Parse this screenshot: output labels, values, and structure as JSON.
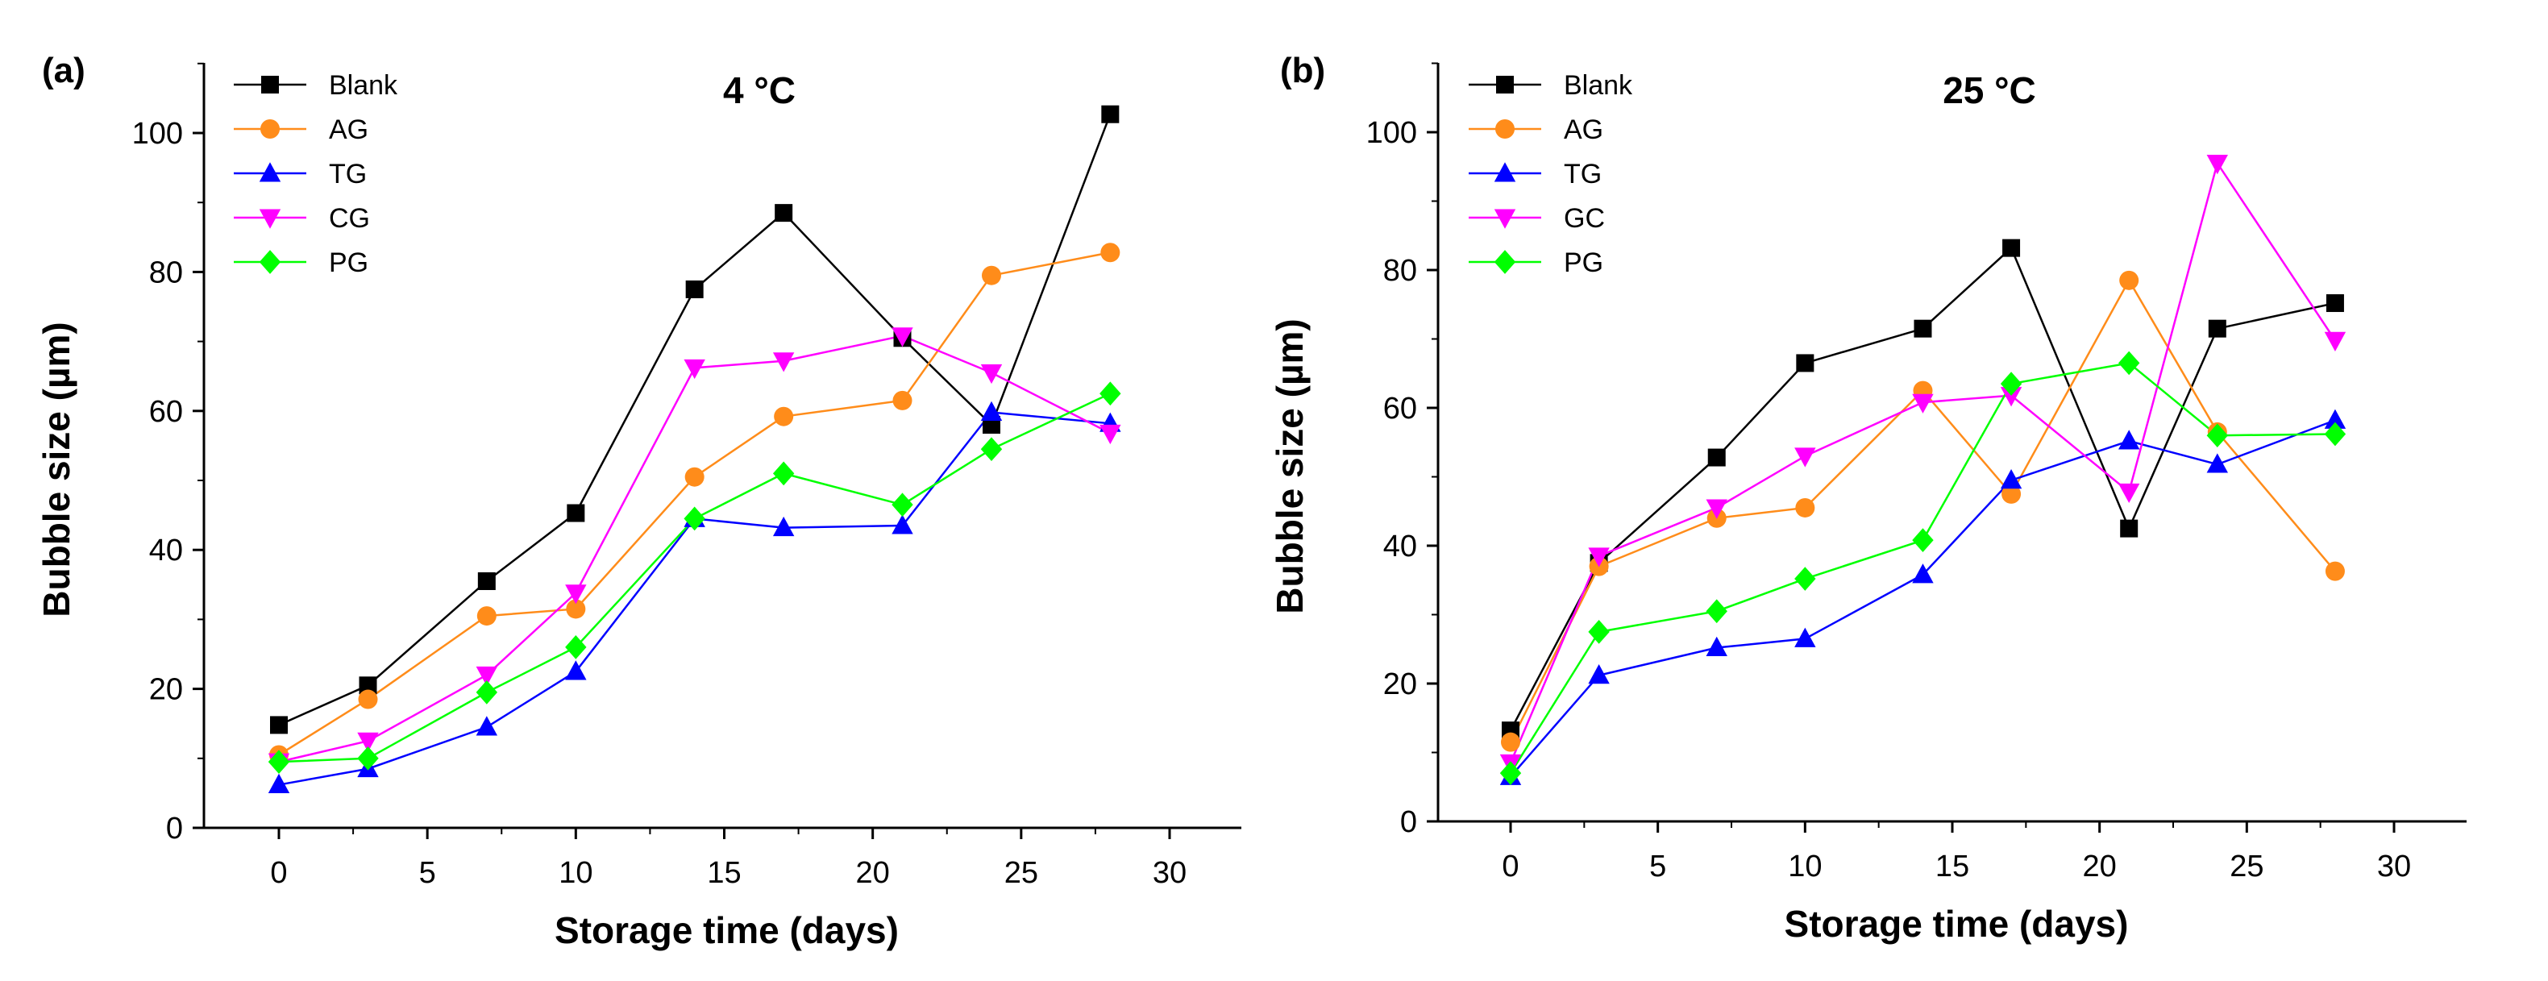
{
  "chart_data": [
    {
      "type": "line",
      "panel_label": "(a)",
      "title": "4 °C",
      "xlabel": "Storage time (days)",
      "ylabel": "Bubble size (µm)",
      "xlim": [
        -2.5,
        33
      ],
      "ylim": [
        0,
        110
      ],
      "xticks": [
        0,
        5,
        10,
        15,
        20,
        25,
        30
      ],
      "yticks": [
        0,
        20,
        40,
        60,
        80,
        100
      ],
      "x": [
        0,
        3,
        7,
        10,
        14,
        17,
        21,
        24,
        28
      ],
      "series": [
        {
          "name": "Blank",
          "color": "#000000",
          "marker": "square",
          "values": [
            14.8,
            20.5,
            35.5,
            45.3,
            77.5,
            88.5,
            70.5,
            58.0,
            102.7
          ]
        },
        {
          "name": "AG",
          "color": "#ff8c1a",
          "marker": "circle",
          "values": [
            10.5,
            18.5,
            30.5,
            31.5,
            50.5,
            59.2,
            61.5,
            79.5,
            82.8
          ]
        },
        {
          "name": "TG",
          "color": "#0000ff",
          "marker": "triangle-up",
          "values": [
            6.2,
            8.5,
            14.5,
            22.5,
            44.5,
            43.2,
            43.5,
            59.8,
            58.2
          ]
        },
        {
          "name": "CG",
          "color": "#ff00ff",
          "marker": "triangle-down",
          "values": [
            9.5,
            12.5,
            22.0,
            33.8,
            66.2,
            67.2,
            70.8,
            65.5,
            56.8
          ]
        },
        {
          "name": "PG",
          "color": "#00ff00",
          "marker": "diamond",
          "values": [
            9.5,
            10.0,
            19.5,
            26.0,
            44.5,
            51.0,
            46.5,
            54.5,
            62.5
          ]
        }
      ],
      "legend": "top-left"
    },
    {
      "type": "line",
      "panel_label": "(b)",
      "title": "25 °C",
      "xlabel": "Storage time (days)",
      "ylabel": "Bubble size (µm)",
      "xlim": [
        -2.5,
        33
      ],
      "ylim": [
        0,
        110
      ],
      "xticks": [
        0,
        5,
        10,
        15,
        20,
        25,
        30
      ],
      "yticks": [
        0,
        20,
        40,
        60,
        80,
        100
      ],
      "x": [
        0,
        3,
        7,
        10,
        14,
        17,
        21,
        24,
        28
      ],
      "series": [
        {
          "name": "Blank",
          "color": "#000000",
          "marker": "square",
          "values": [
            13.2,
            37.5,
            52.8,
            66.5,
            71.5,
            83.2,
            42.5,
            71.5,
            75.2
          ]
        },
        {
          "name": "AG",
          "color": "#ff8c1a",
          "marker": "circle",
          "values": [
            11.5,
            37.0,
            44.0,
            45.5,
            62.5,
            47.5,
            78.5,
            56.5,
            36.3
          ]
        },
        {
          "name": "TG",
          "color": "#0000ff",
          "marker": "triangle-up",
          "values": [
            6.5,
            21.2,
            25.2,
            26.5,
            35.8,
            49.5,
            55.2,
            51.8,
            58.2
          ]
        },
        {
          "name": "GC",
          "color": "#ff00ff",
          "marker": "triangle-down",
          "values": [
            8.5,
            38.5,
            45.5,
            53.0,
            60.8,
            61.8,
            47.8,
            95.5,
            69.8
          ]
        },
        {
          "name": "PG",
          "color": "#00ff00",
          "marker": "diamond",
          "values": [
            7.0,
            27.5,
            30.5,
            35.2,
            40.8,
            63.5,
            66.5,
            56.0,
            56.2
          ]
        }
      ],
      "legend": "top-left"
    }
  ]
}
